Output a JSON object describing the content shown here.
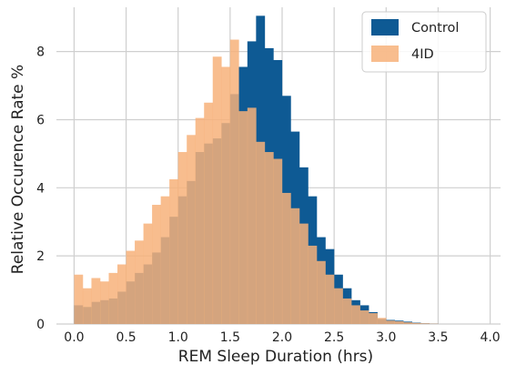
{
  "chart_data": {
    "type": "bar",
    "subtype": "overlaid-histogram",
    "xlabel": "REM Sleep Duration (hrs)",
    "ylabel": "Relative Occurence Rate %",
    "xlim": [
      -0.17,
      4.1
    ],
    "ylim": [
      0,
      9.3
    ],
    "xticks": [
      0.0,
      0.5,
      1.0,
      1.5,
      2.0,
      2.5,
      3.0,
      3.5,
      4.0
    ],
    "xtick_labels": [
      "0.0",
      "0.5",
      "1.0",
      "1.5",
      "2.0",
      "2.5",
      "3.0",
      "3.5",
      "4.0"
    ],
    "yticks": [
      0,
      2,
      4,
      6,
      8
    ],
    "ytick_labels": [
      "0",
      "2",
      "4",
      "6",
      "8"
    ],
    "grid": true,
    "legend_position": "top-right",
    "bin_width": 0.0833,
    "bin_start": 0.0,
    "series": [
      {
        "name": "Control",
        "color": "#0e5a94",
        "values": [
          0.55,
          0.5,
          0.65,
          0.7,
          0.75,
          0.95,
          1.25,
          1.5,
          1.75,
          2.1,
          2.55,
          3.15,
          3.75,
          4.2,
          5.05,
          5.3,
          5.45,
          5.9,
          6.75,
          7.55,
          8.3,
          9.05,
          8.1,
          7.75,
          6.7,
          5.65,
          4.6,
          3.75,
          2.55,
          2.2,
          1.45,
          1.05,
          0.7,
          0.55,
          0.35,
          0.15,
          0.12,
          0.1,
          0.07,
          0.04,
          0.02,
          0.01
        ]
      },
      {
        "name": "4ID",
        "color": "#f7b27a",
        "values": [
          1.45,
          1.05,
          1.35,
          1.25,
          1.5,
          1.75,
          2.15,
          2.45,
          2.95,
          3.5,
          3.75,
          4.25,
          5.05,
          5.55,
          6.05,
          6.5,
          7.85,
          7.55,
          8.35,
          6.25,
          6.35,
          5.35,
          5.05,
          4.85,
          3.85,
          3.4,
          2.95,
          2.3,
          1.85,
          1.45,
          1.05,
          0.75,
          0.55,
          0.4,
          0.32,
          0.18,
          0.1,
          0.08,
          0.05,
          0.03,
          0.02,
          0.01
        ]
      }
    ]
  }
}
